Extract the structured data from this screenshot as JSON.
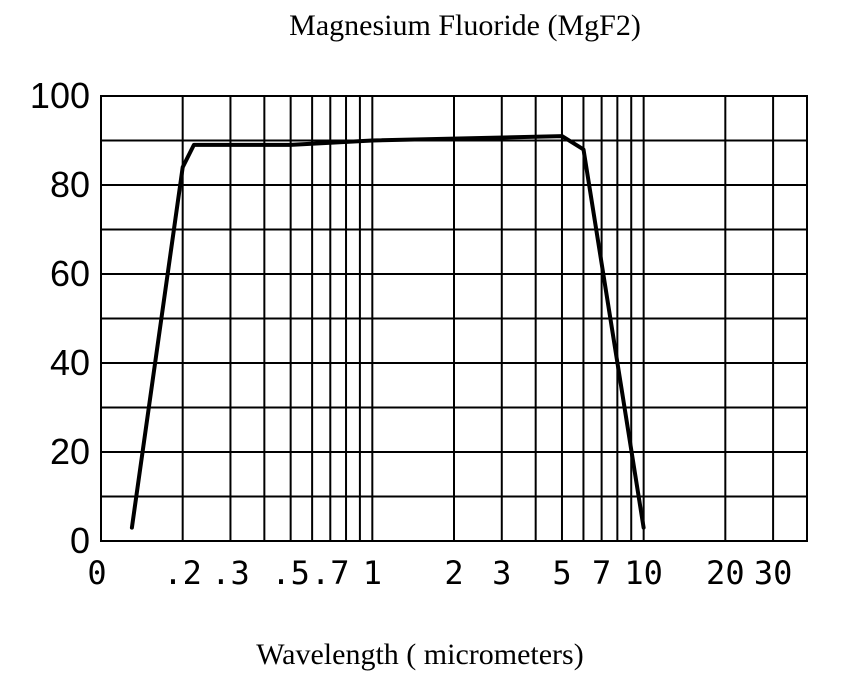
{
  "chart_data": {
    "type": "line",
    "title": "Magnesium Fluoride (MgF2)",
    "xlabel": "Wavelength ( micrometers)",
    "ylabel": "",
    "ylim": [
      0,
      100
    ],
    "x_scale": "log",
    "grid": true,
    "yticks": [
      "0",
      "20",
      "40",
      "60",
      "80",
      "100"
    ],
    "xticks": [
      "0",
      ".2",
      ".3",
      ".5",
      ".7",
      "1",
      "2",
      "3",
      "5",
      "7",
      "10",
      "20",
      "30"
    ],
    "series": [
      {
        "x": [
          0.13,
          0.2,
          0.22,
          0.5,
          1,
          5,
          6,
          10
        ],
        "y": [
          3,
          84,
          89,
          89,
          90,
          91,
          88,
          3
        ]
      }
    ]
  }
}
